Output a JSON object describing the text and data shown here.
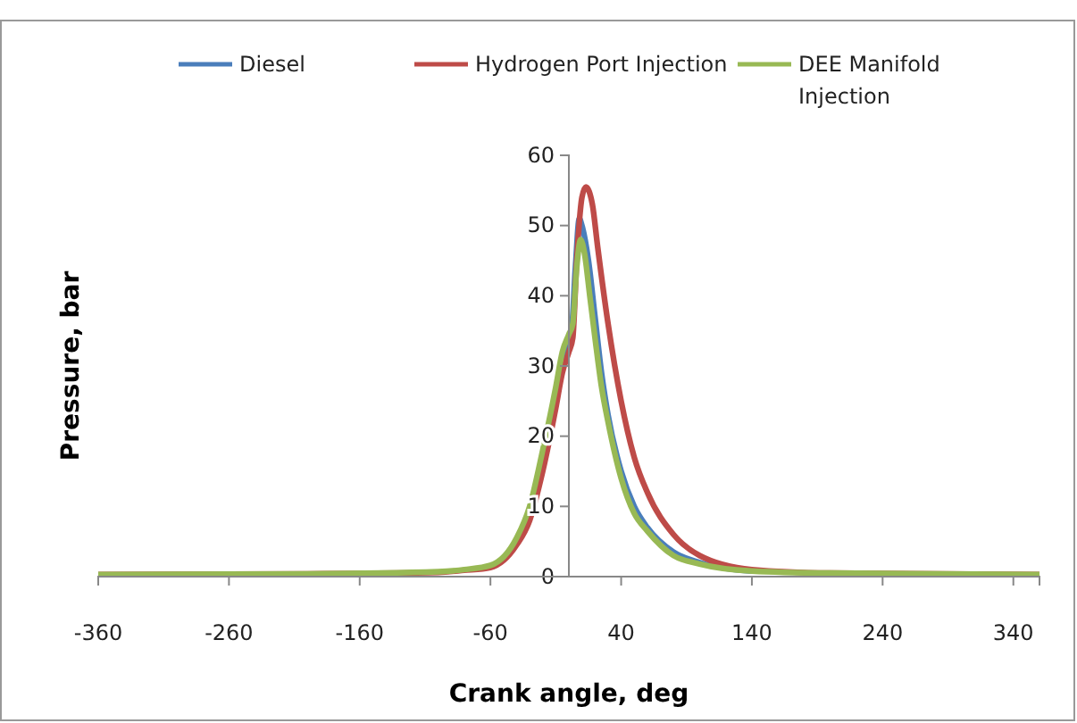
{
  "chart_data": {
    "type": "line",
    "xlabel": "Crank angle, deg",
    "ylabel": "Pressure, bar",
    "xlim": [
      -360,
      360
    ],
    "xticks": [
      -360,
      -260,
      -160,
      -60,
      40,
      140,
      240,
      340
    ],
    "ylim": [
      0,
      60
    ],
    "yticks": [
      0,
      10,
      20,
      30,
      40,
      50,
      60
    ],
    "grid": false,
    "legend": "top",
    "marker": "none",
    "line_style": "solid",
    "series": [
      {
        "name": "Diesel",
        "color": "#4a7ebb",
        "x": [
          -5,
          0,
          2,
          5,
          8,
          10,
          15,
          20,
          25,
          30,
          40,
          50,
          60,
          80,
          100,
          140
        ],
        "values": [
          31,
          34,
          35,
          44,
          51,
          50,
          45,
          37,
          29,
          23,
          15,
          10,
          7,
          3.5,
          2,
          0.8
        ]
      },
      {
        "name": "Hydrogen Port Injection",
        "color": "#be4b48",
        "x": [
          -360,
          -200,
          -100,
          -80,
          -60,
          -40,
          -30,
          -20,
          -10,
          -5,
          0,
          3,
          6,
          10,
          13,
          18,
          22,
          30,
          40,
          50,
          60,
          80,
          100,
          140,
          200,
          360
        ],
        "values": [
          0.3,
          0.4,
          0.6,
          0.9,
          1.3,
          4.5,
          8,
          15,
          24,
          29,
          32,
          34,
          45,
          54,
          55.5,
          53,
          47,
          36,
          25,
          17,
          12,
          6,
          3,
          1,
          0.5,
          0.3
        ]
      },
      {
        "name": "DEE Manifold Injection",
        "color": "#98b954",
        "x": [
          -360,
          -200,
          -100,
          -80,
          -60,
          -40,
          -30,
          -20,
          -10,
          -5,
          0,
          3,
          6,
          9,
          12,
          16,
          20,
          25,
          30,
          40,
          50,
          60,
          80,
          100,
          140,
          200,
          360
        ],
        "values": [
          0.3,
          0.4,
          0.7,
          1,
          1.6,
          5.5,
          10,
          18,
          27,
          32,
          34.5,
          36,
          44,
          48,
          46,
          40,
          34,
          27,
          22,
          14,
          9,
          6.5,
          3,
          1.8,
          0.8,
          0.5,
          0.3
        ]
      }
    ]
  }
}
